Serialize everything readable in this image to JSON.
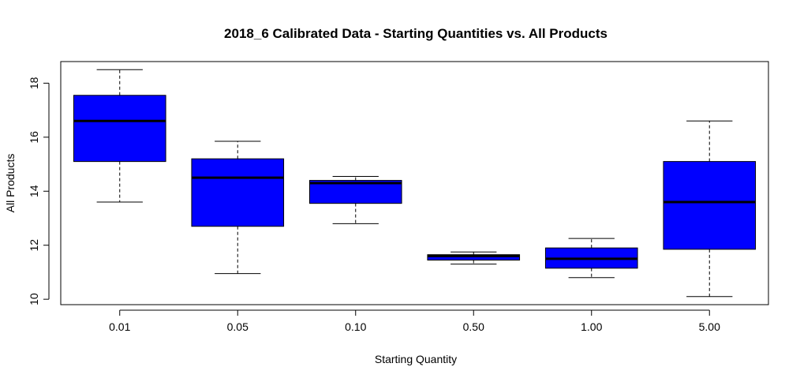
{
  "chart_data": {
    "type": "box",
    "title": "2018_6 Calibrated Data - Starting Quantities vs. All Products",
    "xlabel": "Starting Quantity",
    "ylabel": "All Products",
    "ylim": [
      9.8,
      18.8
    ],
    "yticks": [
      10,
      12,
      14,
      16,
      18
    ],
    "categories": [
      "0.01",
      "0.05",
      "0.10",
      "0.50",
      "1.00",
      "5.00"
    ],
    "box_color": "#0000ff",
    "boxes": [
      {
        "category": "0.01",
        "whisker_low": 13.6,
        "q1": 15.1,
        "median": 16.6,
        "q3": 17.55,
        "whisker_high": 18.5
      },
      {
        "category": "0.05",
        "whisker_low": 10.95,
        "q1": 12.7,
        "median": 14.5,
        "q3": 15.2,
        "whisker_high": 15.85
      },
      {
        "category": "0.10",
        "whisker_low": 12.8,
        "q1": 13.55,
        "median": 14.3,
        "q3": 14.4,
        "whisker_high": 14.55
      },
      {
        "category": "0.50",
        "whisker_low": 11.3,
        "q1": 11.45,
        "median": 11.6,
        "q3": 11.65,
        "whisker_high": 11.75
      },
      {
        "category": "1.00",
        "whisker_low": 10.8,
        "q1": 11.15,
        "median": 11.5,
        "q3": 11.9,
        "whisker_high": 12.25
      },
      {
        "category": "5.00",
        "whisker_low": 10.1,
        "q1": 11.85,
        "median": 13.6,
        "q3": 15.1,
        "whisker_high": 16.6
      }
    ]
  }
}
